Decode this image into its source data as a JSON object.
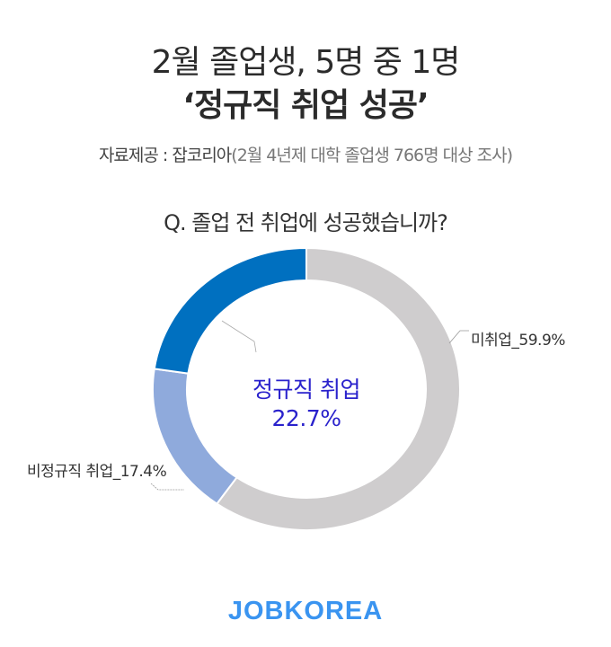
{
  "header": {
    "title_line1": "2월 졸업생, 5명 중 1명",
    "title_line2": "‘정규직 취업 성공’",
    "source_label": "자료제공 : 잡코리아",
    "source_note": "(2월 4년제 대학 졸업생 766명 대상 조사)"
  },
  "chart_data": {
    "type": "pie",
    "variant": "donut",
    "title": "Q. 졸업 전 취업에 성공했습니까?",
    "start": "top",
    "direction": "clockwise",
    "slices": [
      {
        "name": "미취업",
        "value": 59.9,
        "label": "미취업_59.9%",
        "color": "#cfcdce"
      },
      {
        "name": "비정규직 취업",
        "value": 17.4,
        "label": "비정규직 취업_17.4%",
        "color": "#8faadc"
      },
      {
        "name": "정규직 취업",
        "value": 22.7,
        "label": "정규직 취업",
        "value_label": "22.7%",
        "color": "#0070c0",
        "text_color": "#2a22cc"
      }
    ]
  },
  "footer": {
    "logo": "JOBKOREA",
    "logo_color": "#3a94f0"
  }
}
